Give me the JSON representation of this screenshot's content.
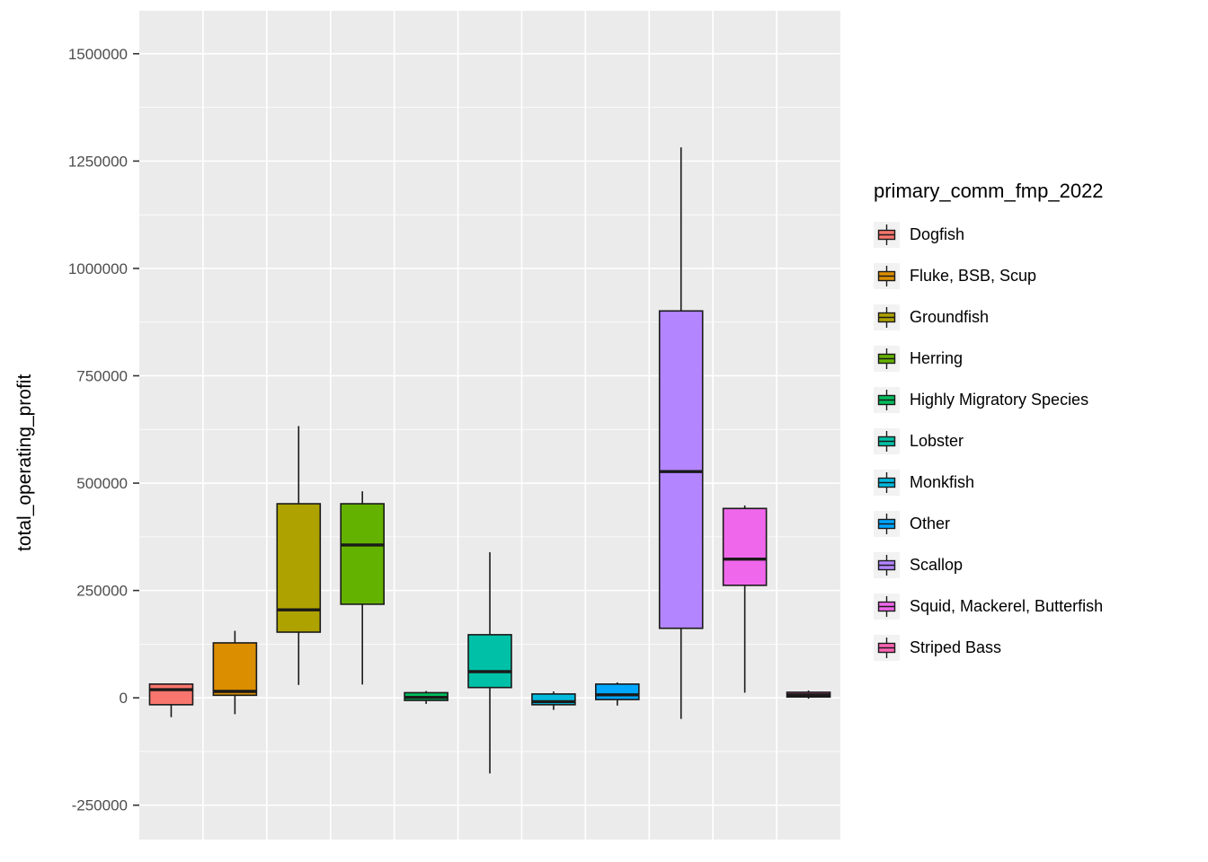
{
  "chart_data": {
    "type": "boxplot",
    "title": "",
    "ylabel": "total_operating_profit",
    "legend_title": "primary_comm_fmp_2022",
    "legend_position": "right",
    "grid": "on",
    "yticks": [
      -250000,
      0,
      250000,
      500000,
      750000,
      1000000,
      1250000,
      1500000
    ],
    "ylim": [
      -330000,
      1600000
    ],
    "panel_bg": "#EBEBEB",
    "grid_color": "#FFFFFF",
    "tick_label_color": "#4D4D4D",
    "legend_key_bg": "#F2F2F2",
    "box_outline_color": "#1A1A1A",
    "series": [
      {
        "name": "Dogfish",
        "color": "#F8766D",
        "min": -45000,
        "q1": -16000,
        "median": 19000,
        "q3": 32000,
        "max": 32000
      },
      {
        "name": "Fluke, BSB, Scup",
        "color": "#DB8E00",
        "min": -38000,
        "q1": 6000,
        "median": 15000,
        "q3": 128000,
        "max": 156000
      },
      {
        "name": "Groundfish",
        "color": "#AEA200",
        "min": 30000,
        "q1": 153000,
        "median": 205000,
        "q3": 452000,
        "max": 633000
      },
      {
        "name": "Herring",
        "color": "#64B200",
        "min": 31000,
        "q1": 218000,
        "median": 356000,
        "q3": 452000,
        "max": 481000
      },
      {
        "name": "Highly Migratory Species",
        "color": "#00BD5C",
        "min": -14000,
        "q1": -6000,
        "median": 1000,
        "q3": 12000,
        "max": 16000
      },
      {
        "name": "Lobster",
        "color": "#00C1A7",
        "min": -176000,
        "q1": 24000,
        "median": 61000,
        "q3": 147000,
        "max": 339000
      },
      {
        "name": "Monkfish",
        "color": "#00BADE",
        "min": -28000,
        "q1": -16000,
        "median": -9000,
        "q3": 9000,
        "max": 15000
      },
      {
        "name": "Other",
        "color": "#00A6FF",
        "min": -18000,
        "q1": -4000,
        "median": 7000,
        "q3": 32000,
        "max": 36000
      },
      {
        "name": "Scallop",
        "color": "#B385FF",
        "min": -49000,
        "q1": 162000,
        "median": 527000,
        "q3": 901000,
        "max": 1282000
      },
      {
        "name": "Squid, Mackerel, Butterfish",
        "color": "#EF67EB",
        "min": 12000,
        "q1": 262000,
        "median": 323000,
        "q3": 441000,
        "max": 448000
      },
      {
        "name": "Striped Bass",
        "color": "#FF63B6",
        "min": -2000,
        "q1": 2000,
        "median": 7000,
        "q3": 13000,
        "max": 17000
      }
    ]
  }
}
